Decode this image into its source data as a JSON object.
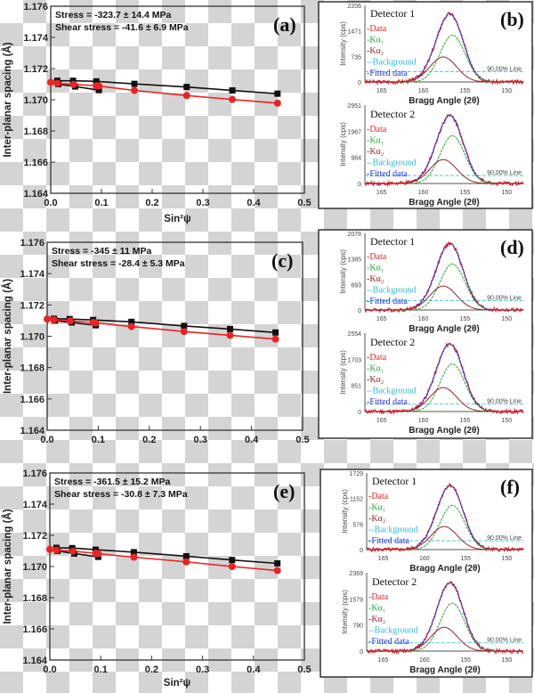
{
  "colors": {
    "black_series": "#111111",
    "red_series": "#ee2222",
    "data": "#ee2222",
    "ka1": "#22aa33",
    "ka2": "#992222",
    "background": "#33bbdd",
    "fitted": "#2233dd"
  },
  "chart_data": [
    {
      "panel": "(a)",
      "type": "scatter-line",
      "xlabel": "Sin²ψ",
      "ylabel": "Inter-planar spacing (Å)",
      "xlim": [
        0.0,
        0.5
      ],
      "ylim": [
        1.164,
        1.176
      ],
      "xticks": [
        "0.0",
        "0.1",
        "0.2",
        "0.3",
        "0.4",
        "0.5"
      ],
      "yticks": [
        "1.164",
        "1.166",
        "1.168",
        "1.170",
        "1.172",
        "1.174",
        "1.176"
      ],
      "annotations": [
        "Stress = -323.7 ± 14.4 MPa",
        "Shear stress = -41.6 ± 6.9 MPa"
      ],
      "series": [
        {
          "marker": "square",
          "color": "black",
          "branches": [
            {
              "x": [
                0.013,
                0.044,
                0.09,
                0.165,
                0.268,
                0.358,
                0.447
              ],
              "y": [
                1.17122,
                1.17122,
                1.17118,
                1.17102,
                1.17082,
                1.1706,
                1.17039
              ]
            },
            {
              "x": [
                0.015,
                0.048,
                0.095
              ],
              "y": [
                1.171,
                1.17085,
                1.17062
              ]
            }
          ]
        },
        {
          "marker": "circle",
          "color": "red",
          "branches": [
            {
              "x": [
                0.0,
                0.013,
                0.045,
                0.09,
                0.095,
                0.165,
                0.268,
                0.358,
                0.447
              ],
              "y": [
                1.17112,
                1.17105,
                1.17098,
                1.1709,
                1.17088,
                1.1706,
                1.17027,
                1.17002,
                1.16978
              ]
            }
          ]
        }
      ]
    },
    {
      "panel": "(c)",
      "type": "scatter-line",
      "xlabel": "",
      "ylabel": "Inter-planar spacing (Å)",
      "xlim": [
        0.0,
        0.5
      ],
      "ylim": [
        1.164,
        1.176
      ],
      "xticks": [
        "0.0",
        "0.1",
        "0.2",
        "0.3",
        "0.4",
        "0.5"
      ],
      "yticks": [
        "1.164",
        "1.166",
        "1.168",
        "1.170",
        "1.172",
        "1.174",
        "1.176"
      ],
      "annotations": [
        "Stress = -345 ± 11 MPa",
        "Shear stress = -28.4 ± 5.3 MPa"
      ],
      "series": [
        {
          "marker": "square",
          "color": "black",
          "branches": [
            {
              "x": [
                0.013,
                0.044,
                0.09,
                0.165,
                0.268,
                0.358,
                0.447
              ],
              "y": [
                1.17112,
                1.1711,
                1.17104,
                1.17092,
                1.17066,
                1.17046,
                1.17024
              ]
            },
            {
              "x": [
                0.015,
                0.048,
                0.095
              ],
              "y": [
                1.171,
                1.17088,
                1.1707
              ]
            }
          ]
        },
        {
          "marker": "circle",
          "color": "red",
          "branches": [
            {
              "x": [
                0.0,
                0.013,
                0.045,
                0.09,
                0.095,
                0.165,
                0.268,
                0.358,
                0.447
              ],
              "y": [
                1.1711,
                1.17105,
                1.17098,
                1.17088,
                1.17085,
                1.17062,
                1.1703,
                1.17006,
                1.16982
              ]
            }
          ]
        }
      ]
    },
    {
      "panel": "(e)",
      "type": "scatter-line",
      "xlabel": "Sin²ψ",
      "ylabel": "Inter-planar spacing (Å)",
      "xlim": [
        0.0,
        0.5
      ],
      "ylim": [
        1.164,
        1.176
      ],
      "xticks": [
        "0.0",
        "0.1",
        "0.2",
        "0.3",
        "0.4",
        "0.5"
      ],
      "yticks": [
        "1.164",
        "1.166",
        "1.168",
        "1.170",
        "1.172",
        "1.174",
        "1.176"
      ],
      "annotations": [
        "Stress = -361.5 ± 15.2 MPa",
        "Shear stress = -30.8 ± 7.3 MPa"
      ],
      "series": [
        {
          "marker": "square",
          "color": "black",
          "branches": [
            {
              "x": [
                0.013,
                0.044,
                0.09,
                0.165,
                0.268,
                0.358,
                0.447
              ],
              "y": [
                1.1712,
                1.17118,
                1.17108,
                1.17092,
                1.17066,
                1.17042,
                1.1702
              ]
            },
            {
              "x": [
                0.015,
                0.048,
                0.095
              ],
              "y": [
                1.171,
                1.17083,
                1.17062
              ]
            }
          ]
        },
        {
          "marker": "circle",
          "color": "red",
          "branches": [
            {
              "x": [
                0.0,
                0.013,
                0.045,
                0.09,
                0.095,
                0.165,
                0.268,
                0.358,
                0.447
              ],
              "y": [
                1.1711,
                1.17105,
                1.17098,
                1.17085,
                1.17082,
                1.1706,
                1.1703,
                1.17,
                1.16974
              ]
            }
          ]
        }
      ]
    },
    {
      "panel": "(b)",
      "type": "line",
      "xlabel": "Bragg Angle (2θ)",
      "ylabel": "Intensity (cps)",
      "xticks": [
        "165",
        "160",
        "155",
        "150"
      ],
      "xlim": [
        167,
        148
      ],
      "legend": [
        "-Data",
        "-Kα₁",
        "-Kα₂",
        "--Background",
        "-Fitted data"
      ],
      "line_label": "90.00% Line",
      "detectors": [
        {
          "title": "Detector 1",
          "yticks": [
            "0",
            "735",
            "1471",
            "2206"
          ],
          "ymax": 2206,
          "ka1_peak": [
            156.5,
            1350
          ],
          "ka2_peak": [
            157.6,
            720
          ],
          "background": 300
        },
        {
          "title": "Detector 2",
          "yticks": [
            "0",
            "984",
            "1967",
            "2951"
          ],
          "ymax": 2951,
          "ka1_peak": [
            156.5,
            1800
          ],
          "ka2_peak": [
            157.6,
            900
          ],
          "background": 300
        }
      ]
    },
    {
      "panel": "(d)",
      "type": "line",
      "xlabel": "Bragg Angle (2θ)",
      "ylabel": "Intensity (cps)",
      "xticks": [
        "165",
        "160",
        "155",
        "150"
      ],
      "xlim": [
        167,
        148
      ],
      "legend": [
        "-Data",
        "-Kα₁",
        "-Kα₂",
        "--Background",
        "-Fitted data"
      ],
      "line_label": "90.00% Line",
      "detectors": [
        {
          "title": "Detector 1",
          "yticks": [
            "0",
            "693",
            "1385",
            "2078"
          ],
          "ymax": 2078,
          "ka1_peak": [
            156.5,
            1250
          ],
          "ka2_peak": [
            157.6,
            650
          ],
          "background": 250
        },
        {
          "title": "Detector 2",
          "yticks": [
            "0",
            "851",
            "1703",
            "2554"
          ],
          "ymax": 2554,
          "ka1_peak": [
            156.5,
            1550
          ],
          "ka2_peak": [
            157.6,
            780
          ],
          "background": 250
        }
      ]
    },
    {
      "panel": "(f)",
      "type": "line",
      "xlabel": "Bragg Angle (2θ)",
      "ylabel": "Intensity (cps)",
      "xticks": [
        "165",
        "160",
        "155",
        "150"
      ],
      "xlim": [
        167,
        148
      ],
      "legend": [
        "-Data",
        "-Kα₁",
        "-Kα₂",
        "--Background",
        "-Fitted data"
      ],
      "line_label": "90.00% Line",
      "detectors": [
        {
          "title": "Detector 1",
          "yticks": [
            "0",
            "576",
            "1152",
            "1729"
          ],
          "ymax": 1729,
          "ka1_peak": [
            156.6,
            1000
          ],
          "ka2_peak": [
            157.6,
            520
          ],
          "background": 200
        },
        {
          "title": "Detector 2",
          "yticks": [
            "0",
            "790",
            "1579",
            "2369"
          ],
          "ymax": 2369,
          "ka1_peak": [
            156.6,
            1450
          ],
          "ka2_peak": [
            157.6,
            720
          ],
          "background": 250
        }
      ]
    }
  ]
}
